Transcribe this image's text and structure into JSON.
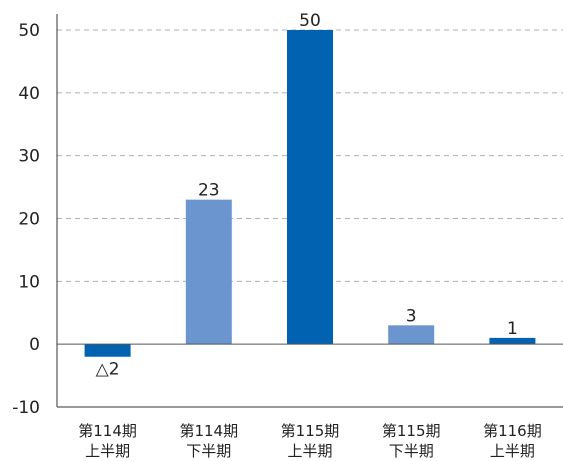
{
  "chart_data": {
    "type": "bar",
    "categories": [
      [
        "第114期",
        "上半期"
      ],
      [
        "第114期",
        "下半期"
      ],
      [
        "第115期",
        "上半期"
      ],
      [
        "第115期",
        "下半期"
      ],
      [
        "第116期",
        "上半期"
      ]
    ],
    "values": [
      -2,
      23,
      50,
      3,
      1
    ],
    "data_labels": [
      "△2",
      "23",
      "50",
      "3",
      "1"
    ],
    "bar_colors": [
      "#0062b1",
      "#6a95cf",
      "#0062b1",
      "#6a95cf",
      "#0062b1"
    ],
    "ylim": [
      -10,
      50
    ],
    "yticks": [
      -10,
      0,
      10,
      20,
      30,
      40,
      50
    ],
    "ytick_labels": [
      "-10",
      "0",
      "10",
      "20",
      "30",
      "40",
      "50"
    ],
    "grid": true,
    "grid_style": "dashed",
    "title": "",
    "xlabel": "",
    "ylabel": ""
  }
}
